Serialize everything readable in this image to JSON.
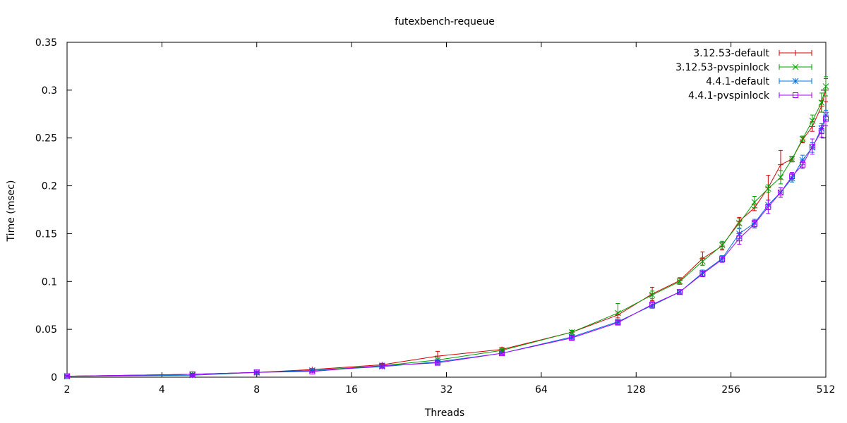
{
  "chart_data": {
    "type": "line",
    "title": "futexbench-requeue",
    "xlabel": "Threads",
    "ylabel": "Time (msec)",
    "x_scale": "log2",
    "xlim": [
      2,
      512
    ],
    "ylim": [
      0,
      0.35
    ],
    "x_ticks": [
      "2",
      "4",
      "8",
      "16",
      "32",
      "64",
      "128",
      "256",
      "512"
    ],
    "x_tick_values": [
      2,
      4,
      8,
      16,
      32,
      64,
      128,
      256,
      512
    ],
    "y_ticks": [
      "0",
      "0.05",
      "0.1",
      "0.15",
      "0.2",
      "0.25",
      "0.3",
      "0.35"
    ],
    "y_tick_values": [
      0,
      0.05,
      0.1,
      0.15,
      0.2,
      0.25,
      0.3,
      0.35
    ],
    "grid": false,
    "legend_position": "top-right",
    "x": [
      2,
      5,
      8,
      12,
      20,
      30,
      48,
      80,
      112,
      144,
      176,
      208,
      240,
      272,
      304,
      336,
      368,
      400,
      432,
      464,
      496,
      512
    ],
    "series": [
      {
        "name": "3.12.53-default",
        "color": "#d40000",
        "marker": "plus",
        "values": [
          0.001,
          0.003,
          0.005,
          0.008,
          0.013,
          0.022,
          0.029,
          0.047,
          0.065,
          0.087,
          0.101,
          0.124,
          0.137,
          0.163,
          0.177,
          0.198,
          0.222,
          0.228,
          0.248,
          0.262,
          0.283,
          0.3
        ],
        "errors": [
          0.001,
          0.001,
          0.001,
          0.001,
          0.001,
          0.005,
          0.002,
          0.002,
          0.003,
          0.007,
          0.003,
          0.007,
          0.004,
          0.004,
          0.003,
          0.013,
          0.015,
          0.003,
          0.003,
          0.005,
          0.006,
          0.012
        ]
      },
      {
        "name": "3.12.53-pvspinlock",
        "color": "#00a000",
        "marker": "cross",
        "values": [
          0.001,
          0.003,
          0.005,
          0.007,
          0.012,
          0.018,
          0.028,
          0.047,
          0.067,
          0.086,
          0.1,
          0.121,
          0.138,
          0.161,
          0.183,
          0.197,
          0.209,
          0.228,
          0.249,
          0.268,
          0.287,
          0.304
        ],
        "errors": [
          0.001,
          0.001,
          0.001,
          0.001,
          0.001,
          0.002,
          0.002,
          0.002,
          0.01,
          0.004,
          0.003,
          0.004,
          0.004,
          0.005,
          0.006,
          0.004,
          0.007,
          0.003,
          0.003,
          0.006,
          0.01,
          0.01
        ]
      },
      {
        "name": "4.4.1-default",
        "color": "#0070e0",
        "marker": "star",
        "values": [
          0.001,
          0.002,
          0.005,
          0.007,
          0.011,
          0.016,
          0.025,
          0.042,
          0.058,
          0.075,
          0.089,
          0.109,
          0.124,
          0.15,
          0.161,
          0.18,
          0.193,
          0.208,
          0.227,
          0.24,
          0.26,
          0.274
        ],
        "errors": [
          0.001,
          0.001,
          0.001,
          0.001,
          0.001,
          0.002,
          0.001,
          0.002,
          0.002,
          0.003,
          0.002,
          0.003,
          0.003,
          0.005,
          0.004,
          0.005,
          0.005,
          0.004,
          0.005,
          0.005,
          0.005,
          0.005
        ]
      },
      {
        "name": "4.4.1-pvspinlock",
        "color": "#a000ff",
        "marker": "square",
        "values": [
          0.001,
          0.003,
          0.005,
          0.006,
          0.012,
          0.015,
          0.025,
          0.041,
          0.057,
          0.076,
          0.089,
          0.108,
          0.123,
          0.145,
          0.16,
          0.178,
          0.193,
          0.21,
          0.222,
          0.241,
          0.257,
          0.27
        ],
        "errors": [
          0.001,
          0.001,
          0.001,
          0.001,
          0.001,
          0.002,
          0.001,
          0.002,
          0.002,
          0.003,
          0.002,
          0.003,
          0.003,
          0.006,
          0.004,
          0.007,
          0.005,
          0.004,
          0.004,
          0.008,
          0.006,
          0.007
        ]
      }
    ]
  }
}
